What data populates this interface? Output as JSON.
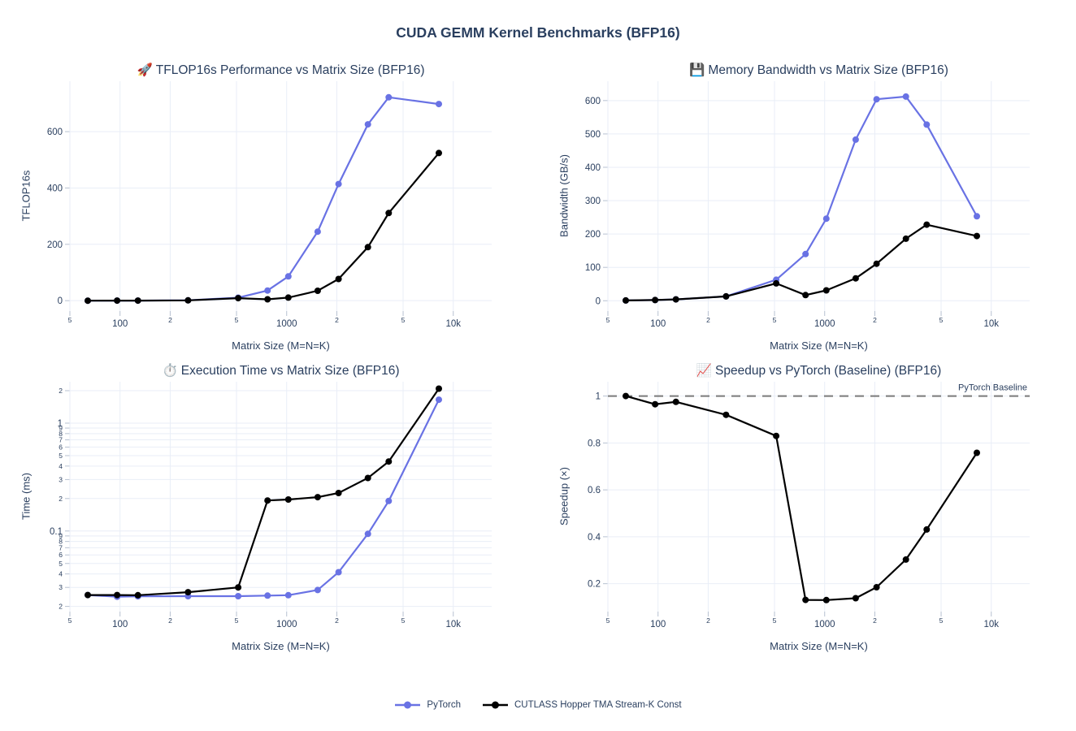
{
  "page_title": "CUDA GEMM Kernel Benchmarks (BFP16)",
  "colors": {
    "pytorch": "#6972E4",
    "cutlass": "#000000",
    "grid": "#E9EEF7",
    "tick": "#B7C1D1",
    "text": "#2A3F5F",
    "baseline_line": "#7A7A7A"
  },
  "legend": {
    "items": [
      {
        "label": "PyTorch",
        "color": "#6972E4"
      },
      {
        "label": "CUTLASS Hopper TMA Stream-K Const",
        "color": "#000000"
      }
    ]
  },
  "matrix_sizes": [
    64,
    96,
    128,
    256,
    512,
    768,
    1024,
    1536,
    2048,
    3072,
    4096,
    8192
  ],
  "xaxis": {
    "label": "Matrix Size (M=N=K)",
    "type": "log",
    "range": [
      50,
      17000
    ],
    "ticks": [
      {
        "v": 50,
        "label": "5",
        "minor": true
      },
      {
        "v": 100,
        "label": "100"
      },
      {
        "v": 200,
        "label": "2",
        "minor": true
      },
      {
        "v": 500,
        "label": "5",
        "minor": true
      },
      {
        "v": 1000,
        "label": "1000"
      },
      {
        "v": 2000,
        "label": "2",
        "minor": true
      },
      {
        "v": 5000,
        "label": "5",
        "minor": true
      },
      {
        "v": 10000,
        "label": "10k"
      }
    ]
  },
  "chart_data": [
    {
      "type": "line",
      "icon": "🚀",
      "title": "TFLOP16s Performance vs Matrix Size (BFP16)",
      "xlabel": "Matrix Size (M=N=K)",
      "ylabel": "TFLOP16s",
      "yaxis": {
        "type": "linear",
        "range": [
          -37,
          779
        ],
        "ticks": [
          {
            "v": 0,
            "label": "0"
          },
          {
            "v": 200,
            "label": "200"
          },
          {
            "v": 400,
            "label": "400"
          },
          {
            "v": 600,
            "label": "600"
          }
        ]
      },
      "series": [
        {
          "name": "PyTorch",
          "color_key": "pytorch",
          "values": [
            0.02,
            0.07,
            0.17,
            1.3,
            10.5,
            36,
            86,
            245,
            414,
            626,
            722,
            698
          ]
        },
        {
          "name": "CUTLASS Hopper TMA Stream-K Const",
          "color_key": "cutlass",
          "values": [
            0.02,
            0.07,
            0.16,
            1.2,
            8.8,
            4.8,
            11,
            35,
            77,
            190,
            311,
            524
          ]
        }
      ]
    },
    {
      "type": "line",
      "icon": "💾",
      "title": "Memory Bandwidth vs Matrix Size (BFP16)",
      "xlabel": "Matrix Size (M=N=K)",
      "ylabel": "Bandwidth (GB/s)",
      "yaxis": {
        "type": "linear",
        "range": [
          -31,
          658
        ],
        "ticks": [
          {
            "v": 0,
            "label": "0"
          },
          {
            "v": 100,
            "label": "100"
          },
          {
            "v": 200,
            "label": "200"
          },
          {
            "v": 300,
            "label": "300"
          },
          {
            "v": 400,
            "label": "400"
          },
          {
            "v": 500,
            "label": "500"
          },
          {
            "v": 600,
            "label": "600"
          }
        ]
      },
      "series": [
        {
          "name": "PyTorch",
          "color_key": "pytorch",
          "values": [
            1,
            2,
            4,
            13,
            63,
            140,
            246,
            483,
            604,
            612,
            528,
            253
          ]
        },
        {
          "name": "CUTLASS Hopper TMA Stream-K Const",
          "color_key": "cutlass",
          "values": [
            1,
            2,
            4,
            13,
            52,
            17,
            31,
            67,
            111,
            186,
            228,
            194
          ]
        }
      ]
    },
    {
      "type": "line",
      "icon": "⏱️",
      "title": "Execution Time vs Matrix Size (BFP16)",
      "xlabel": "Matrix Size (M=N=K)",
      "ylabel": "Time (ms)",
      "yaxis": {
        "type": "log",
        "range": [
          0.0179,
          2.42
        ],
        "ticks": [
          {
            "v": 2,
            "label": "2",
            "minor": true
          },
          {
            "v": 1,
            "label": "1"
          },
          {
            "v": 0.9,
            "label": "9",
            "minor": true
          },
          {
            "v": 0.8,
            "label": "8",
            "minor": true
          },
          {
            "v": 0.7,
            "label": "7",
            "minor": true
          },
          {
            "v": 0.6,
            "label": "6",
            "minor": true
          },
          {
            "v": 0.5,
            "label": "5",
            "minor": true
          },
          {
            "v": 0.4,
            "label": "4",
            "minor": true
          },
          {
            "v": 0.3,
            "label": "3",
            "minor": true
          },
          {
            "v": 0.2,
            "label": "2",
            "minor": true
          },
          {
            "v": 0.1,
            "label": "0.1"
          },
          {
            "v": 0.09,
            "label": "9",
            "minor": true
          },
          {
            "v": 0.08,
            "label": "8",
            "minor": true
          },
          {
            "v": 0.07,
            "label": "7",
            "minor": true
          },
          {
            "v": 0.06,
            "label": "6",
            "minor": true
          },
          {
            "v": 0.05,
            "label": "5",
            "minor": true
          },
          {
            "v": 0.04,
            "label": "4",
            "minor": true
          },
          {
            "v": 0.03,
            "label": "3",
            "minor": true
          },
          {
            "v": 0.02,
            "label": "2",
            "minor": true
          }
        ]
      },
      "series": [
        {
          "name": "PyTorch",
          "color_key": "pytorch",
          "values": [
            0.0255,
            0.0246,
            0.0248,
            0.0249,
            0.0249,
            0.0252,
            0.0254,
            0.0284,
            0.0415,
            0.094,
            0.19,
            1.65
          ]
        },
        {
          "name": "CUTLASS Hopper TMA Stream-K Const",
          "color_key": "cutlass",
          "values": [
            0.0255,
            0.0255,
            0.0254,
            0.0271,
            0.03,
            0.192,
            0.196,
            0.206,
            0.225,
            0.31,
            0.441,
            2.09
          ]
        }
      ]
    },
    {
      "type": "line",
      "icon": "📈",
      "title": "Speedup vs PyTorch (Baseline) (BFP16)",
      "xlabel": "Matrix Size (M=N=K)",
      "ylabel": "Speedup (×)",
      "baseline": {
        "value": 1,
        "label": "PyTorch Baseline"
      },
      "yaxis": {
        "type": "linear",
        "range": [
          0.081,
          1.061
        ],
        "ticks": [
          {
            "v": 0.2,
            "label": "0.2"
          },
          {
            "v": 0.4,
            "label": "0.4"
          },
          {
            "v": 0.6,
            "label": "0.6"
          },
          {
            "v": 0.8,
            "label": "0.8"
          },
          {
            "v": 1,
            "label": "1"
          }
        ]
      },
      "series": [
        {
          "name": "CUTLASS Hopper TMA Stream-K Const",
          "color_key": "cutlass",
          "values": [
            1.0,
            0.965,
            0.975,
            0.92,
            0.83,
            0.131,
            0.13,
            0.138,
            0.185,
            0.303,
            0.431,
            0.758
          ]
        }
      ]
    }
  ]
}
